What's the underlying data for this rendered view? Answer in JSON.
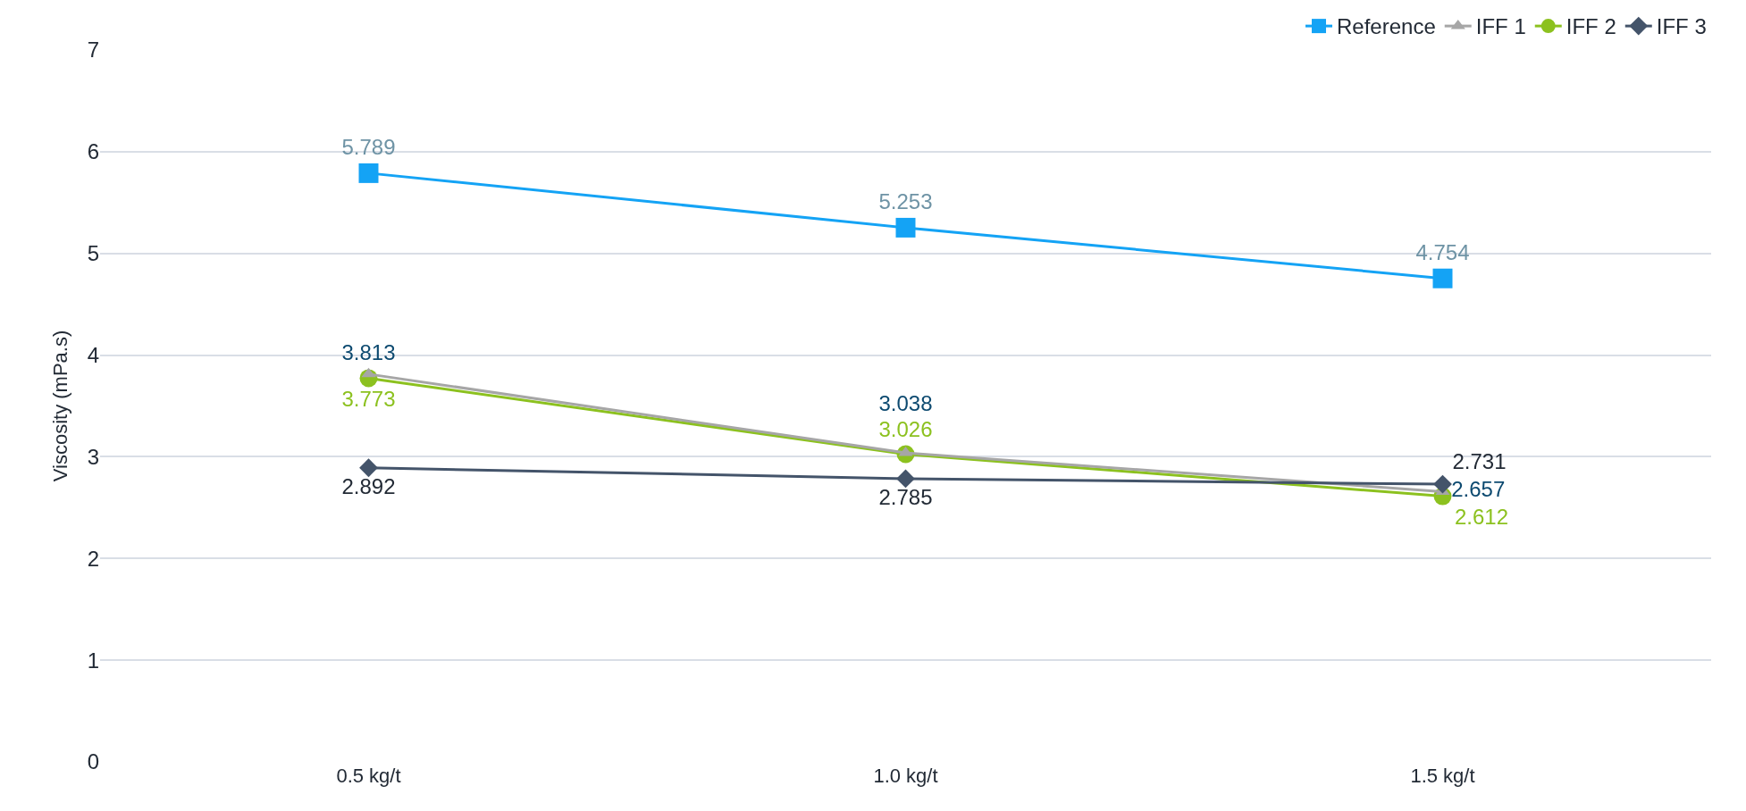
{
  "chart_data": {
    "type": "line",
    "ylabel": "Viscosity (mPa.s)",
    "categories": [
      "0.5 kg/t",
      "1.0 kg/t",
      "1.5 kg/t"
    ],
    "series": [
      {
        "name": "Reference",
        "color": "#14a3f5",
        "marker": "square",
        "values": [
          5.789,
          5.253,
          4.754
        ]
      },
      {
        "name": "IFF 1",
        "color": "#a6a6a6",
        "marker": "triangle",
        "values": [
          3.813,
          3.038,
          2.657
        ]
      },
      {
        "name": "IFF 2",
        "color": "#8cc11f",
        "marker": "circle",
        "values": [
          3.773,
          3.026,
          2.612
        ]
      },
      {
        "name": "IFF 3",
        "color": "#44546a",
        "marker": "diamond",
        "values": [
          2.892,
          2.785,
          2.731
        ]
      }
    ],
    "ylim": [
      0,
      7
    ],
    "yticks": [
      0,
      1,
      2,
      3,
      4,
      5,
      6,
      7
    ],
    "grid": "y",
    "legend": "top right",
    "data_labels": true
  }
}
